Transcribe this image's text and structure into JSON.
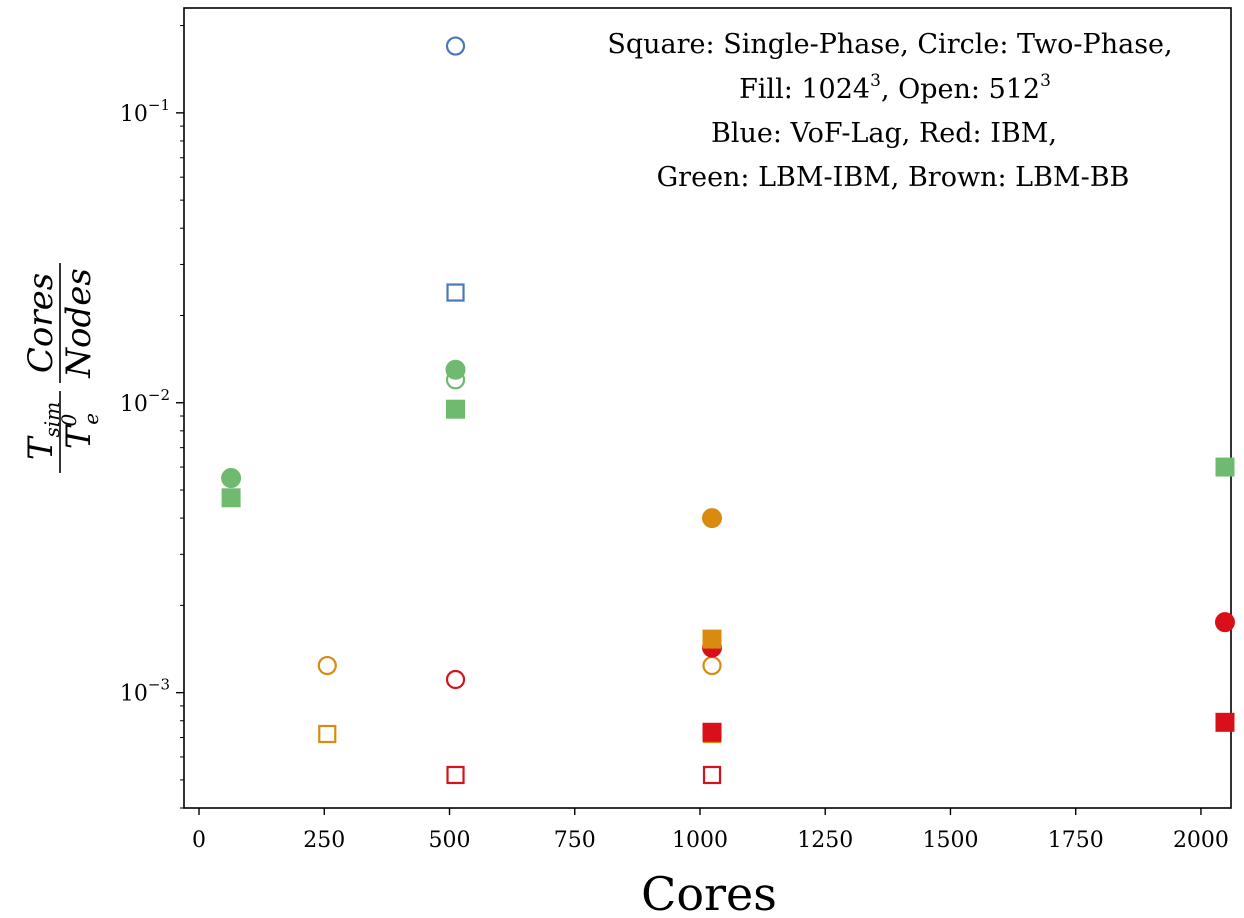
{
  "chart_data": {
    "type": "scatter",
    "title": "",
    "xlabel": "Cores",
    "ylabel": {
      "num_left": "T",
      "num_left_sub": "sim",
      "num_right": "Cores",
      "den_left": "T",
      "den_left_sup": "0",
      "den_left_sub": "e",
      "den_right": "Nodes"
    },
    "xlim": [
      -30,
      2060
    ],
    "ylim": [
      0.0004,
      0.23
    ],
    "yscale": "log",
    "grid": false,
    "x_ticks": [
      0,
      250,
      500,
      750,
      1000,
      1250,
      1500,
      1750,
      2000
    ],
    "y_ticks": [
      {
        "value": 0.1,
        "base": "10",
        "exp": "−1"
      },
      {
        "value": 0.01,
        "base": "10",
        "exp": "−2"
      },
      {
        "value": 0.001,
        "base": "10",
        "exp": "−3"
      }
    ],
    "legend_annotation": {
      "placement": "top-right",
      "line1": "Square: Single-Phase, Circle: Two-Phase,",
      "line2_a": "Fill: 1024",
      "line2_sup_a": "3",
      "line2_b": ", Open: 512",
      "line2_sup_b": "3",
      "line3": "Blue: VoF-Lag, Red: IBM,",
      "line4": "Green: LBM-IBM, Brown: LBM-BB"
    },
    "colors": {
      "VoF-Lag": "#4a78b8",
      "IBM": "#d9101a",
      "LBM-IBM": "#6fba6f",
      "LBM-BB": "#d98a10"
    },
    "points": [
      {
        "method": "VoF-Lag",
        "shape": "circle",
        "fill": "open",
        "x": 512,
        "y": 0.17
      },
      {
        "method": "VoF-Lag",
        "shape": "square",
        "fill": "open",
        "x": 512,
        "y": 0.024
      },
      {
        "method": "LBM-IBM",
        "shape": "circle",
        "fill": "filled",
        "x": 512,
        "y": 0.013
      },
      {
        "method": "LBM-IBM",
        "shape": "circle",
        "fill": "open",
        "x": 512,
        "y": 0.012
      },
      {
        "method": "LBM-IBM",
        "shape": "square",
        "fill": "filled",
        "x": 512,
        "y": 0.0095
      },
      {
        "method": "LBM-IBM",
        "shape": "circle",
        "fill": "filled",
        "x": 64,
        "y": 0.0055
      },
      {
        "method": "LBM-IBM",
        "shape": "square",
        "fill": "filled",
        "x": 64,
        "y": 0.0047
      },
      {
        "method": "LBM-IBM",
        "shape": "square",
        "fill": "filled",
        "x": 2048,
        "y": 0.006
      },
      {
        "method": "LBM-BB",
        "shape": "circle",
        "fill": "filled",
        "x": 1024,
        "y": 0.004
      },
      {
        "method": "LBM-BB",
        "shape": "circle",
        "fill": "open",
        "x": 256,
        "y": 0.00124
      },
      {
        "method": "LBM-BB",
        "shape": "square",
        "fill": "open",
        "x": 256,
        "y": 0.00072
      },
      {
        "method": "LBM-BB",
        "shape": "circle",
        "fill": "open",
        "x": 1024,
        "y": 0.00124
      },
      {
        "method": "LBM-BB",
        "shape": "square",
        "fill": "open",
        "x": 1024,
        "y": 0.00072
      },
      {
        "method": "IBM",
        "shape": "circle",
        "fill": "filled",
        "x": 1024,
        "y": 0.00143
      },
      {
        "method": "IBM",
        "shape": "square",
        "fill": "filled",
        "x": 1024,
        "y": 0.00073
      },
      {
        "method": "LBM-BB",
        "shape": "square",
        "fill": "filled",
        "x": 1024,
        "y": 0.00153
      },
      {
        "method": "IBM",
        "shape": "circle",
        "fill": "open",
        "x": 512,
        "y": 0.00111
      },
      {
        "method": "IBM",
        "shape": "square",
        "fill": "open",
        "x": 512,
        "y": 0.00052
      },
      {
        "method": "IBM",
        "shape": "square",
        "fill": "open",
        "x": 1024,
        "y": 0.00052
      },
      {
        "method": "IBM",
        "shape": "circle",
        "fill": "filled",
        "x": 2048,
        "y": 0.00175
      },
      {
        "method": "IBM",
        "shape": "square",
        "fill": "filled",
        "x": 2048,
        "y": 0.00079
      }
    ]
  }
}
